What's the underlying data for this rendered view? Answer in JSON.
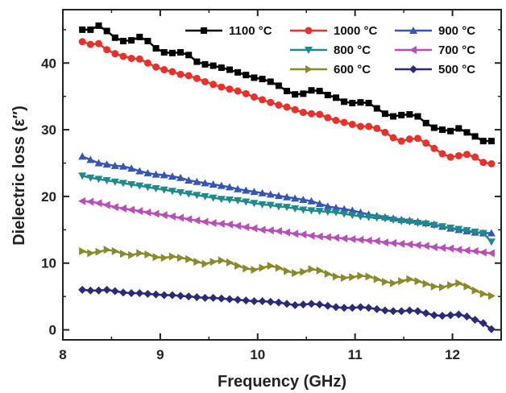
{
  "chart_data": {
    "type": "line",
    "title": "",
    "xlabel": "Frequency (GHz)",
    "ylabel": "Dielectric loss (ε″)",
    "xlim": [
      8,
      12.5
    ],
    "ylim": [
      -1.5,
      48
    ],
    "xticks": [
      8,
      9,
      10,
      11,
      12
    ],
    "yticks": [
      0,
      10,
      20,
      30,
      40
    ],
    "grid": false,
    "legend_position": "top-right",
    "x": [
      8.2,
      8.284,
      8.368,
      8.452,
      8.536,
      8.62,
      8.704,
      8.788,
      8.872,
      8.956,
      9.04,
      9.124,
      9.208,
      9.292,
      9.376,
      9.46,
      9.544,
      9.628,
      9.712,
      9.796,
      9.88,
      9.964,
      10.048,
      10.132,
      10.216,
      10.3,
      10.384,
      10.468,
      10.552,
      10.636,
      10.72,
      10.804,
      10.888,
      10.972,
      11.056,
      11.14,
      11.224,
      11.308,
      11.392,
      11.476,
      11.56,
      11.644,
      11.728,
      11.812,
      11.896,
      11.98,
      12.064,
      12.148,
      12.232,
      12.316,
      12.4
    ],
    "series": [
      {
        "name": "1100 °C",
        "color": "#000000",
        "marker": "square",
        "values": [
          45.0,
          45.0,
          45.6,
          44.8,
          43.8,
          43.3,
          43.4,
          43.9,
          43.3,
          42.2,
          41.6,
          41.5,
          41.6,
          41.2,
          40.2,
          39.8,
          39.6,
          39.3,
          39.0,
          38.6,
          38.2,
          37.8,
          37.6,
          37.2,
          36.6,
          35.8,
          35.3,
          35.4,
          35.9,
          35.8,
          35.2,
          34.8,
          34.2,
          34.0,
          34.1,
          34.0,
          33.2,
          32.4,
          32.0,
          32.2,
          32.3,
          32.0,
          31.0,
          30.3,
          30.0,
          29.8,
          30.2,
          29.6,
          29.0,
          28.3,
          28.3
        ]
      },
      {
        "name": "1000 °C",
        "color": "#e8312a",
        "marker": "circle",
        "values": [
          43.2,
          42.8,
          42.9,
          42.0,
          41.4,
          41.0,
          40.7,
          40.6,
          40.0,
          39.4,
          39.0,
          38.7,
          38.3,
          38.1,
          37.7,
          37.2,
          36.8,
          36.4,
          36.1,
          35.8,
          35.4,
          34.9,
          34.5,
          34.1,
          33.7,
          33.4,
          33.0,
          32.6,
          32.4,
          32.3,
          31.8,
          31.4,
          31.1,
          30.8,
          30.5,
          30.5,
          30.2,
          29.6,
          28.8,
          28.3,
          28.6,
          28.7,
          28.0,
          27.2,
          26.4,
          25.9,
          26.1,
          26.3,
          25.9,
          25.1,
          24.9
        ]
      },
      {
        "name": "900 °C",
        "color": "#3557b3",
        "marker": "triangle-up",
        "values": [
          26.0,
          25.5,
          25.0,
          24.8,
          24.6,
          24.5,
          24.2,
          23.8,
          23.5,
          23.3,
          23.2,
          23.0,
          22.8,
          22.4,
          22.2,
          22.0,
          21.8,
          21.6,
          21.4,
          21.1,
          20.9,
          20.7,
          20.5,
          20.3,
          20.1,
          19.9,
          19.7,
          19.5,
          19.3,
          18.9,
          18.5,
          18.3,
          18.1,
          17.9,
          17.6,
          17.3,
          17.1,
          16.9,
          16.7,
          16.5,
          16.4,
          16.2,
          16.0,
          15.8,
          15.5,
          15.2,
          15.0,
          14.8,
          14.6,
          14.5,
          14.5
        ]
      },
      {
        "name": "800 °C",
        "color": "#1f8a8a",
        "marker": "triangle-down",
        "values": [
          23.1,
          22.8,
          22.6,
          22.4,
          22.2,
          22.0,
          21.8,
          21.6,
          21.4,
          21.2,
          21.0,
          20.8,
          20.6,
          20.4,
          20.2,
          20.0,
          19.8,
          19.6,
          19.5,
          19.4,
          19.2,
          19.0,
          18.8,
          18.7,
          18.5,
          18.4,
          18.2,
          18.0,
          17.9,
          17.8,
          17.7,
          17.6,
          17.4,
          17.2,
          17.0,
          16.9,
          16.8,
          16.7,
          16.5,
          16.3,
          16.2,
          16.0,
          15.9,
          15.7,
          15.5,
          15.3,
          15.1,
          14.9,
          14.7,
          14.5,
          13.2
        ]
      },
      {
        "name": "700 °C",
        "color": "#b84eb8",
        "marker": "triangle-left",
        "values": [
          19.3,
          19.2,
          19.0,
          18.7,
          18.4,
          18.2,
          18.0,
          17.8,
          17.6,
          17.4,
          17.2,
          17.0,
          16.8,
          16.6,
          16.4,
          16.2,
          16.0,
          15.9,
          15.8,
          15.6,
          15.4,
          15.2,
          15.0,
          14.9,
          14.8,
          14.6,
          14.4,
          14.3,
          14.1,
          14.0,
          13.9,
          13.8,
          13.7,
          13.6,
          13.5,
          13.4,
          13.3,
          13.1,
          13.0,
          12.9,
          12.8,
          12.7,
          12.6,
          12.4,
          12.3,
          12.2,
          12.0,
          11.9,
          11.8,
          11.6,
          11.5
        ]
      },
      {
        "name": "600 °C",
        "color": "#8a8a2a",
        "marker": "triangle-right",
        "values": [
          11.8,
          11.5,
          11.7,
          12.0,
          11.8,
          11.4,
          11.2,
          11.5,
          11.3,
          10.9,
          10.8,
          11.0,
          10.8,
          10.6,
          10.2,
          9.9,
          10.2,
          10.4,
          10.1,
          9.6,
          9.2,
          9.0,
          9.3,
          9.6,
          9.3,
          8.8,
          8.5,
          8.7,
          9.1,
          8.9,
          8.4,
          8.0,
          7.8,
          7.9,
          8.1,
          8.0,
          7.6,
          7.2,
          7.0,
          7.3,
          7.6,
          7.3,
          6.9,
          6.5,
          6.4,
          6.7,
          7.0,
          6.5,
          5.9,
          5.4,
          5.1
        ]
      },
      {
        "name": "500 °C",
        "color": "#2a2a7a",
        "marker": "diamond",
        "values": [
          6.0,
          5.9,
          5.9,
          6.0,
          5.8,
          5.6,
          5.5,
          5.5,
          5.4,
          5.3,
          5.2,
          5.2,
          5.1,
          5.0,
          4.9,
          4.8,
          4.8,
          4.7,
          4.6,
          4.5,
          4.4,
          4.3,
          4.3,
          4.2,
          4.1,
          3.9,
          3.7,
          3.8,
          3.9,
          3.8,
          3.6,
          3.4,
          3.3,
          3.3,
          3.4,
          3.3,
          3.1,
          2.9,
          2.8,
          2.8,
          2.9,
          2.8,
          2.5,
          2.2,
          2.1,
          2.2,
          2.3,
          2.0,
          1.5,
          1.0,
          0.1
        ]
      }
    ]
  }
}
